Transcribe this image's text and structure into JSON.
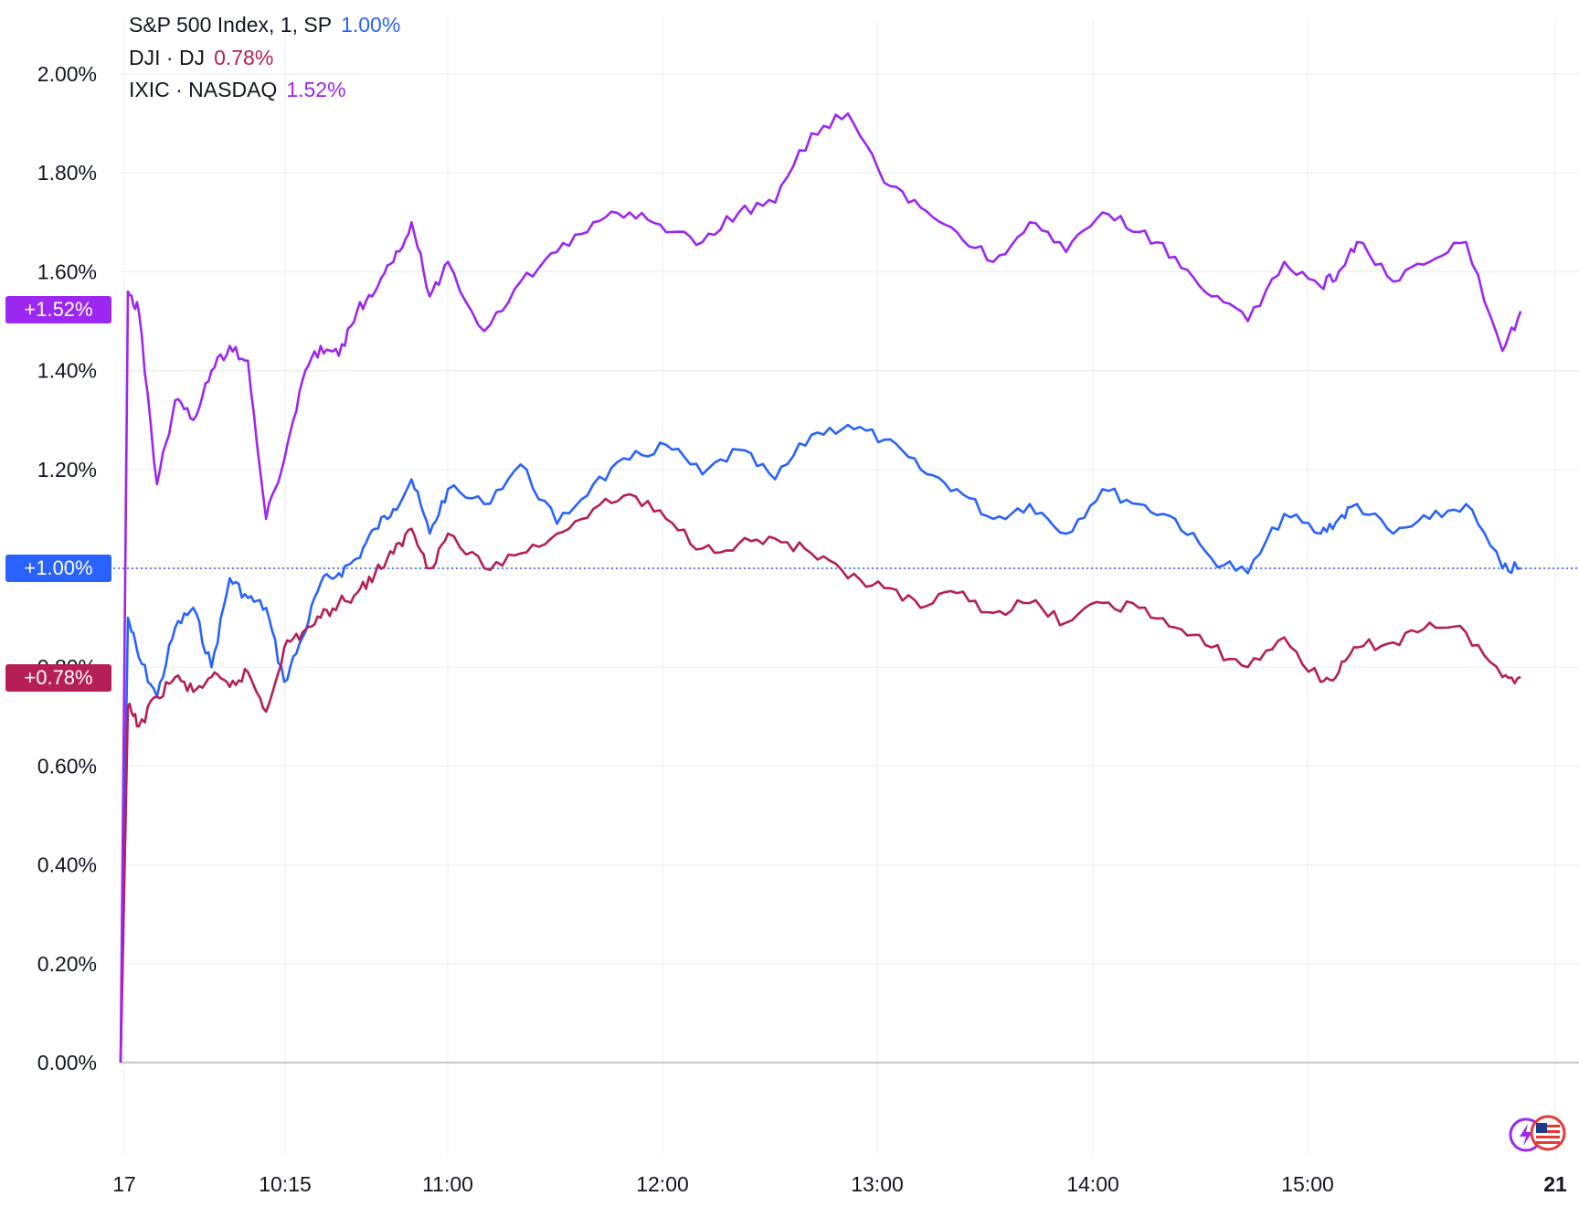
{
  "legend": [
    {
      "label": "S&P 500 Index, 1, SP",
      "value": "1.00%"
    },
    {
      "label": "DJI · DJ",
      "value": "0.78%"
    },
    {
      "label": "IXIC · NASDAQ",
      "value": "1.52%"
    }
  ],
  "badges": {
    "ixic": "+1.52%",
    "sp": "+1.00%",
    "dji": "+0.78%"
  },
  "colors": {
    "sp": "#2962ff",
    "dji": "#b51f55",
    "ixic": "#9c27f0",
    "grid": "#eeeff3",
    "reference": "#2962ff"
  },
  "icons": [
    "lightning-icon",
    "us-flag-icon"
  ],
  "chart_data": {
    "type": "line",
    "y_tick_labels": [
      "0.00%",
      "0.20%",
      "0.40%",
      "0.60%",
      "0.80%",
      "1.00%",
      "1.20%",
      "1.40%",
      "1.60%",
      "1.80%",
      "2.00%"
    ],
    "x_tick_labels": [
      "17",
      "10:15",
      "11:00",
      "12:00",
      "13:00",
      "14:00",
      "15:00",
      "21"
    ],
    "ylim": [
      0,
      2.0
    ],
    "grid": true,
    "legend_position": "top-left",
    "reference_line": 1.0,
    "series": [
      {
        "name": "S&P 500 Index, 1, SP",
        "color": "#2962ff",
        "x": [
          "09:30",
          "09:32",
          "09:35",
          "09:40",
          "09:45",
          "09:50",
          "09:55",
          "10:00",
          "10:05",
          "10:10",
          "10:15",
          "10:20",
          "10:25",
          "10:30",
          "10:35",
          "10:40",
          "10:45",
          "10:50",
          "10:55",
          "11:00",
          "11:10",
          "11:20",
          "11:30",
          "11:40",
          "11:50",
          "12:00",
          "12:10",
          "12:20",
          "12:30",
          "12:40",
          "12:50",
          "13:00",
          "13:10",
          "13:20",
          "13:30",
          "13:40",
          "13:50",
          "14:00",
          "14:10",
          "14:20",
          "14:30",
          "14:40",
          "14:50",
          "15:00",
          "15:05",
          "15:10",
          "15:20",
          "15:30",
          "15:40",
          "15:50",
          "15:55"
        ],
        "values": [
          0.0,
          0.9,
          0.82,
          0.74,
          0.88,
          0.92,
          0.8,
          0.98,
          0.94,
          0.92,
          0.77,
          0.86,
          0.97,
          0.99,
          1.02,
          1.08,
          1.12,
          1.18,
          1.07,
          1.16,
          1.13,
          1.21,
          1.09,
          1.17,
          1.22,
          1.25,
          1.19,
          1.24,
          1.18,
          1.27,
          1.29,
          1.26,
          1.2,
          1.16,
          1.1,
          1.13,
          1.07,
          1.16,
          1.13,
          1.1,
          1.02,
          0.99,
          1.11,
          1.07,
          1.1,
          1.13,
          1.07,
          1.1,
          1.13,
          1.0,
          1.0
        ]
      },
      {
        "name": "DJI · DJ",
        "color": "#b51f55",
        "x": [
          "09:30",
          "09:32",
          "09:35",
          "09:40",
          "09:45",
          "09:50",
          "09:55",
          "10:00",
          "10:05",
          "10:10",
          "10:15",
          "10:20",
          "10:25",
          "10:30",
          "10:35",
          "10:40",
          "10:45",
          "10:50",
          "10:55",
          "11:00",
          "11:10",
          "11:20",
          "11:30",
          "11:40",
          "11:50",
          "12:00",
          "12:10",
          "12:20",
          "12:30",
          "12:40",
          "12:50",
          "13:00",
          "13:10",
          "13:20",
          "13:30",
          "13:40",
          "13:50",
          "14:00",
          "14:10",
          "14:20",
          "14:30",
          "14:40",
          "14:50",
          "15:00",
          "15:05",
          "15:10",
          "15:20",
          "15:30",
          "15:40",
          "15:50",
          "15:55"
        ],
        "values": [
          0.0,
          0.72,
          0.68,
          0.74,
          0.78,
          0.75,
          0.78,
          0.76,
          0.79,
          0.71,
          0.84,
          0.87,
          0.9,
          0.93,
          0.95,
          0.99,
          1.03,
          1.08,
          1.0,
          1.07,
          1.0,
          1.03,
          1.07,
          1.12,
          1.15,
          1.1,
          1.04,
          1.05,
          1.06,
          1.03,
          0.98,
          0.96,
          0.92,
          0.95,
          0.91,
          0.93,
          0.89,
          0.93,
          0.92,
          0.88,
          0.84,
          0.8,
          0.86,
          0.77,
          0.79,
          0.84,
          0.85,
          0.89,
          0.87,
          0.78,
          0.78
        ]
      },
      {
        "name": "IXIC · NASDAQ",
        "color": "#9c27f0",
        "x": [
          "09:30",
          "09:32",
          "09:35",
          "09:40",
          "09:45",
          "09:50",
          "09:55",
          "10:00",
          "10:05",
          "10:10",
          "10:15",
          "10:20",
          "10:25",
          "10:30",
          "10:35",
          "10:40",
          "10:45",
          "10:50",
          "10:55",
          "11:00",
          "11:10",
          "11:20",
          "11:30",
          "11:40",
          "11:50",
          "12:00",
          "12:10",
          "12:20",
          "12:30",
          "12:40",
          "12:50",
          "13:00",
          "13:10",
          "13:20",
          "13:30",
          "13:40",
          "13:50",
          "14:00",
          "14:10",
          "14:20",
          "14:30",
          "14:40",
          "14:50",
          "15:00",
          "15:05",
          "15:10",
          "15:20",
          "15:30",
          "15:40",
          "15:50",
          "15:55"
        ],
        "values": [
          0.0,
          1.56,
          1.52,
          1.17,
          1.34,
          1.3,
          1.4,
          1.45,
          1.42,
          1.1,
          1.22,
          1.38,
          1.45,
          1.43,
          1.52,
          1.56,
          1.62,
          1.7,
          1.55,
          1.62,
          1.48,
          1.58,
          1.64,
          1.7,
          1.72,
          1.68,
          1.66,
          1.72,
          1.74,
          1.88,
          1.92,
          1.78,
          1.73,
          1.68,
          1.62,
          1.7,
          1.64,
          1.72,
          1.68,
          1.63,
          1.55,
          1.5,
          1.62,
          1.57,
          1.6,
          1.66,
          1.58,
          1.62,
          1.66,
          1.44,
          1.52
        ]
      }
    ]
  }
}
